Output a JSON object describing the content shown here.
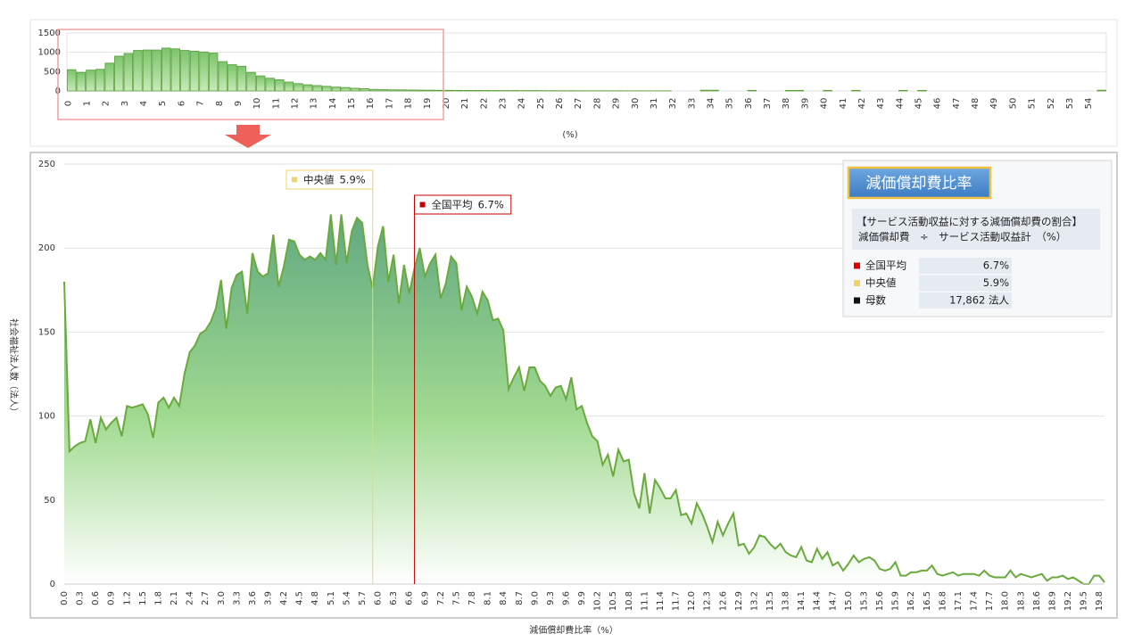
{
  "chart_data": [
    {
      "type": "bar",
      "color": "#8fd07f",
      "ylim": [
        0,
        1500
      ],
      "yticks": [
        0,
        500,
        1000,
        1500
      ],
      "grid": true,
      "xlabel": "(%)",
      "categories": [
        "0",
        null,
        "1",
        null,
        "2",
        null,
        "3",
        null,
        "4",
        null,
        "5",
        null,
        "6",
        null,
        "7",
        null,
        "8",
        null,
        "9",
        null,
        "10",
        null,
        "11",
        null,
        "12",
        null,
        "13",
        null,
        "14",
        null,
        "15",
        null,
        "16",
        null,
        "17",
        null,
        "18",
        null,
        "19",
        null,
        "20",
        null,
        "21",
        null,
        "22",
        null,
        "23",
        null,
        "24",
        null,
        "25",
        null,
        "26",
        null,
        "27",
        null,
        "28",
        null,
        "29",
        null,
        "30",
        null,
        "31",
        null,
        "32",
        null,
        "33",
        null,
        "34",
        null,
        "35",
        null,
        "36",
        null,
        "37",
        null,
        "38",
        null,
        "39",
        null,
        "40",
        null,
        "41",
        null,
        "42",
        null,
        "43",
        null,
        "44",
        null,
        "45",
        null,
        "46",
        null,
        "47",
        null,
        "48",
        null,
        "49",
        null,
        "50",
        null,
        "51",
        null,
        "52",
        null,
        "53",
        null,
        "54",
        null
      ],
      "values": [
        550,
        480,
        540,
        560,
        720,
        900,
        970,
        1050,
        1060,
        1060,
        1110,
        1090,
        1050,
        1030,
        1010,
        980,
        760,
        680,
        640,
        480,
        390,
        330,
        290,
        230,
        190,
        160,
        140,
        120,
        100,
        90,
        70,
        60,
        40,
        35,
        30,
        28,
        25,
        22,
        20,
        18,
        16,
        15,
        14,
        13,
        12,
        11,
        10,
        10,
        9,
        9,
        8,
        8,
        7,
        7,
        6,
        6,
        5,
        5,
        5,
        4,
        4,
        4,
        3,
        3,
        0,
        0,
        0,
        20,
        20,
        0,
        0,
        0,
        15,
        0,
        0,
        0,
        15,
        15,
        0,
        0,
        15,
        0,
        0,
        15,
        0,
        0,
        0,
        0,
        15,
        0,
        15,
        0,
        0,
        0,
        0,
        0,
        0,
        0,
        0,
        0,
        0,
        0,
        0,
        0,
        0,
        0,
        0,
        0,
        0,
        20
      ]
    },
    {
      "type": "area",
      "color": "#6aaa3c",
      "ylim": [
        0,
        250
      ],
      "yticks": [
        0,
        50,
        100,
        150,
        200,
        250
      ],
      "xlim": [
        0,
        19.9
      ],
      "grid": true,
      "xlabel": "減価償却費比率（%）",
      "ylabel": "社会福祉法人数（法人）",
      "categories": [
        "0.0",
        null,
        null,
        "0.3",
        null,
        null,
        "0.6",
        null,
        null,
        "0.9",
        null,
        null,
        "1.2",
        null,
        null,
        "1.5",
        null,
        null,
        "1.8",
        null,
        null,
        "2.1",
        null,
        null,
        "2.4",
        null,
        null,
        "2.7",
        null,
        null,
        "3.0",
        null,
        null,
        "3.3",
        null,
        null,
        "3.6",
        null,
        null,
        "3.9",
        null,
        null,
        "4.2",
        null,
        null,
        "4.5",
        null,
        null,
        "4.8",
        null,
        null,
        "5.1",
        null,
        null,
        "5.4",
        null,
        null,
        "5.7",
        null,
        null,
        "6.0",
        null,
        null,
        "6.3",
        null,
        null,
        "6.6",
        null,
        null,
        "6.9",
        null,
        null,
        "7.2",
        null,
        null,
        "7.5",
        null,
        null,
        "7.8",
        null,
        null,
        "8.1",
        null,
        null,
        "8.4",
        null,
        null,
        "8.7",
        null,
        null,
        "9.0",
        null,
        null,
        "9.3",
        null,
        null,
        "9.6",
        null,
        null,
        "9.9",
        null,
        null,
        "10.2",
        null,
        null,
        "10.5",
        null,
        null,
        "10.8",
        null,
        null,
        "11.1",
        null,
        null,
        "11.4",
        null,
        null,
        "11.7",
        null,
        null,
        "12.0",
        null,
        null,
        "12.3",
        null,
        null,
        "12.6",
        null,
        null,
        "12.9",
        null,
        null,
        "13.2",
        null,
        null,
        "13.5",
        null,
        null,
        "13.8",
        null,
        null,
        "14.1",
        null,
        null,
        "14.4",
        null,
        null,
        "14.7",
        null,
        null,
        "15.0",
        null,
        null,
        "15.3",
        null,
        null,
        "15.6",
        null,
        null,
        "15.9",
        null,
        null,
        "16.2",
        null,
        null,
        "16.5",
        null,
        null,
        "16.8",
        null,
        null,
        "17.1",
        null,
        null,
        "17.4",
        null,
        null,
        "17.7",
        null,
        null,
        "18.0",
        null,
        null,
        "18.3",
        null,
        null,
        "18.6",
        null,
        null,
        "18.9",
        null,
        null,
        "19.2",
        null,
        null,
        "19.5",
        null,
        null,
        "19.8",
        null
      ],
      "values": [
        180,
        79,
        82,
        84,
        85,
        98,
        84,
        99,
        92,
        96,
        99,
        88,
        106,
        105,
        106,
        107,
        101,
        87,
        108,
        111,
        105,
        111,
        106,
        125,
        138,
        142,
        149,
        151,
        156,
        164,
        181,
        152,
        176,
        184,
        186,
        161,
        197,
        186,
        183,
        185,
        208,
        177,
        189,
        205,
        204,
        196,
        193,
        195,
        193,
        197,
        193,
        220,
        190,
        220,
        191,
        210,
        218,
        215,
        190,
        176,
        201,
        213,
        180,
        196,
        167,
        190,
        173,
        188,
        200,
        183,
        191,
        196,
        170,
        179,
        195,
        191,
        163,
        177,
        171,
        161,
        174,
        169,
        157,
        158,
        151,
        116,
        123,
        129,
        115,
        129,
        129,
        121,
        118,
        112,
        117,
        118,
        110,
        123,
        104,
        106,
        96,
        88,
        85,
        71,
        77,
        64,
        80,
        73,
        74,
        54,
        45,
        66,
        42,
        62,
        57,
        51,
        51,
        56,
        41,
        42,
        36,
        48,
        42,
        34,
        25,
        37,
        29,
        36,
        42,
        23,
        24,
        18,
        22,
        29,
        28,
        24,
        21,
        24,
        19,
        17,
        16,
        22,
        14,
        13,
        21,
        15,
        19,
        11,
        13,
        8,
        12,
        17,
        13,
        15,
        16,
        14,
        9,
        8,
        9,
        13,
        5,
        5,
        7,
        7,
        8,
        8,
        11,
        6,
        5,
        6,
        7,
        5,
        6,
        6,
        6,
        5,
        8,
        5,
        4,
        4,
        4,
        8,
        4,
        6,
        5,
        4,
        5,
        6,
        2,
        4,
        4,
        5,
        3,
        4,
        2,
        0,
        0,
        5,
        5,
        1
      ],
      "annotations": [
        {
          "label": "中央値",
          "value": 5.9,
          "value_label": "5.9%",
          "color": "#f2d36b"
        },
        {
          "label": "全国平均",
          "value": 6.7,
          "value_label": "6.7%",
          "color": "#c00000"
        }
      ]
    }
  ],
  "panel": {
    "title": "減価償却費比率",
    "description": [
      "【サービス活動収益に対する減価償却費の割合】",
      "減価償却費　÷　サービス活動収益計　（%）"
    ],
    "rows": [
      {
        "label": "全国平均",
        "value": "6.7%",
        "color": "#e00000"
      },
      {
        "label": "中央値",
        "value": "5.9%",
        "color": "#f2d36b"
      },
      {
        "label": "母数",
        "value": "17,862 法人",
        "color": "#111111"
      }
    ]
  }
}
